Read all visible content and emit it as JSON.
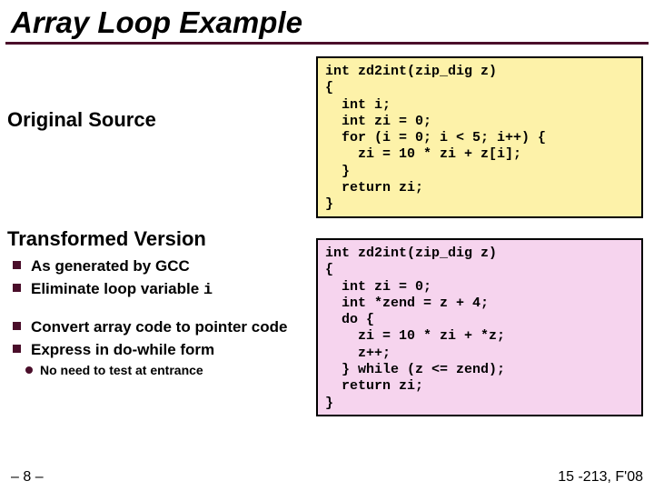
{
  "title": "Array Loop Example",
  "headings": {
    "original": "Original Source",
    "transformed": "Transformed Version"
  },
  "bullets_a": [
    "As generated by GCC",
    "Eliminate loop variable "
  ],
  "bullets_a_tail": "i",
  "bullets_b": [
    "Convert array code to pointer code",
    "Express in do-while form"
  ],
  "subbullet": "No need to test at entrance",
  "code1": "int zd2int(zip_dig z)\n{\n  int i;\n  int zi = 0;\n  for (i = 0; i < 5; i++) {\n    zi = 10 * zi + z[i];\n  }\n  return zi;\n}",
  "code2": "int zd2int(zip_dig z)\n{\n  int zi = 0;\n  int *zend = z + 4;\n  do {\n    zi = 10 * zi + *z;\n    z++;\n  } while (z <= zend);\n  return zi;\n}",
  "code1_bg": "#fdf2a9",
  "code2_bg": "#f6d4ee",
  "slide_number": "– 8 –",
  "course": "15 -213, F'08"
}
